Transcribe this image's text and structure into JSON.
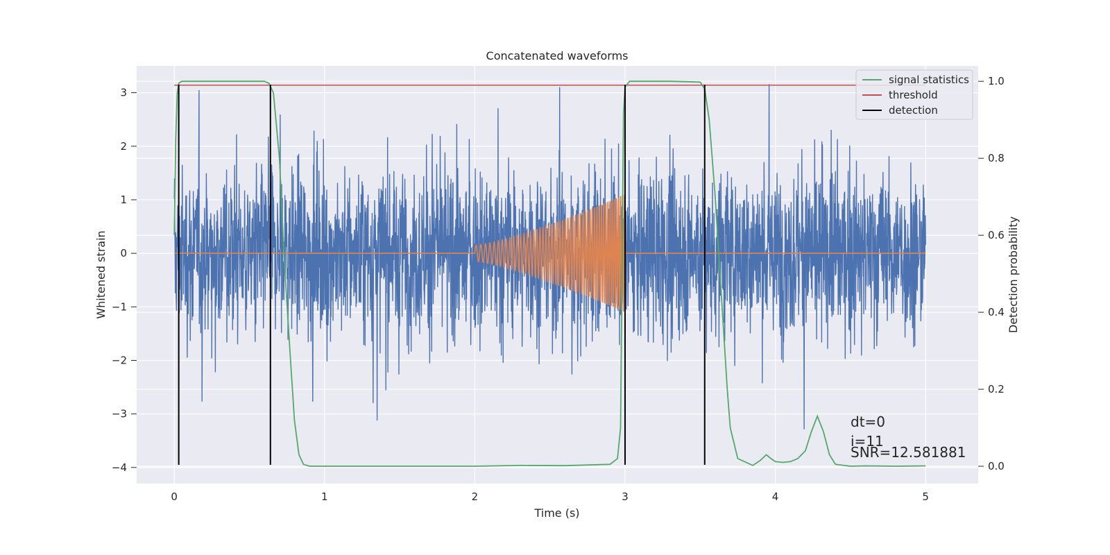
{
  "chart_data": {
    "type": "line",
    "title": "Concatenated waveforms",
    "xlabel": "Time (s)",
    "ylabel": "Whitened strain",
    "y2label": "Detection probability",
    "xlim": [
      -0.25,
      5.35
    ],
    "ylim": [
      -4.3,
      3.5
    ],
    "y2lim": [
      -0.045,
      1.04
    ],
    "xticks": [
      0,
      1,
      2,
      3,
      4,
      5
    ],
    "yticks": [
      -4,
      -3,
      -2,
      -1,
      0,
      1,
      2,
      3
    ],
    "y2ticks": [
      0.0,
      0.2,
      0.4,
      0.6,
      0.8,
      1.0
    ],
    "y2ticklabels": [
      "0.0",
      "0.2",
      "0.4",
      "0.6",
      "0.8",
      "1.0"
    ],
    "grid": true,
    "legend_position": "top-right",
    "legend": [
      "signal statistics",
      "threshold",
      "detection"
    ],
    "colors": {
      "strain": "#4c72b0",
      "template": "#dd8452",
      "signal_statistics": "#55a868",
      "threshold": "#c44e52",
      "detection": "#000000",
      "background": "#eaeaf2",
      "grid": "#ffffff"
    },
    "strain_noise": {
      "t_start": 0.0,
      "t_end": 5.0,
      "typical_envelope": [
        -1.2,
        1.2
      ],
      "max": 3.15,
      "min": -3.6
    },
    "template_chirp": {
      "t_start": 2.0,
      "t_end": 3.0,
      "amplitude_start": 0.15,
      "amplitude_end": 1.1,
      "freq_start_hz": 30,
      "freq_end_hz": 75
    },
    "series": [
      {
        "name": "signal statistics",
        "axis": "right",
        "x": [
          0.0,
          0.01,
          0.02,
          0.03,
          0.05,
          0.1,
          0.3,
          0.6,
          0.63,
          0.66,
          0.7,
          0.73,
          0.77,
          0.8,
          0.83,
          0.86,
          0.9,
          1.5,
          2.0,
          2.3,
          2.6,
          2.9,
          2.95,
          2.97,
          2.98,
          2.99,
          3.0,
          3.03,
          3.1,
          3.3,
          3.5,
          3.53,
          3.56,
          3.6,
          3.64,
          3.68,
          3.7,
          3.75,
          3.85,
          3.9,
          3.94,
          3.97,
          4.0,
          4.05,
          4.1,
          4.15,
          4.2,
          4.24,
          4.28,
          4.32,
          4.36,
          4.4,
          4.5,
          4.6,
          4.8,
          5.0
        ],
        "y": [
          0.6,
          0.85,
          0.97,
          0.995,
          1.0,
          1.0,
          1.0,
          1.0,
          0.995,
          0.97,
          0.8,
          0.55,
          0.3,
          0.12,
          0.03,
          0.005,
          0.0,
          0.0,
          0.0,
          0.002,
          0.0015,
          0.005,
          0.02,
          0.1,
          0.5,
          0.92,
          0.985,
          1.0,
          1.0,
          1.0,
          0.998,
          0.98,
          0.9,
          0.7,
          0.45,
          0.2,
          0.1,
          0.02,
          0.002,
          0.015,
          0.03,
          0.02,
          0.012,
          0.01,
          0.012,
          0.02,
          0.04,
          0.09,
          0.13,
          0.09,
          0.03,
          0.005,
          0.0,
          0.001,
          0.0,
          0.001
        ]
      },
      {
        "name": "threshold",
        "axis": "right",
        "x": [
          0.0,
          5.0
        ],
        "y": [
          0.99,
          0.99
        ]
      },
      {
        "name": "detection",
        "axis": "left",
        "x": [
          0.03,
          0.64,
          3.0,
          3.53
        ],
        "y_bottom": -3.95,
        "y_top": 3.15
      }
    ],
    "annotations": [
      "dt=0",
      "i=11",
      "SNR=12.581881"
    ]
  }
}
